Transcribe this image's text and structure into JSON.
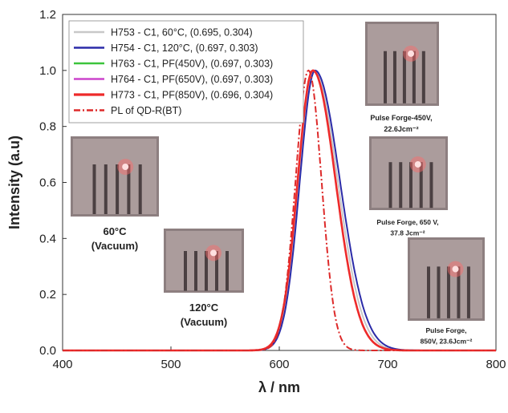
{
  "chart_data": {
    "type": "line",
    "xlabel": "λ / nm",
    "ylabel": "Intensity (a.u)",
    "xlim": [
      400,
      800
    ],
    "ylim": [
      0.0,
      1.2
    ],
    "xticks": [
      "400",
      "500",
      "600",
      "700",
      "800"
    ],
    "yticks": [
      "0.0",
      "0.2",
      "0.4",
      "0.6",
      "0.8",
      "1.0",
      "1.2"
    ],
    "grid": false,
    "legend_position": "top-left",
    "series": [
      {
        "name": "H753 - C1, 60°C, (0.695, 0.304)",
        "color": "#c8c8c8",
        "style": "solid",
        "peak": 632,
        "width_left": 14,
        "width_right": 22,
        "height": 1.0
      },
      {
        "name": "H754 - C1, 120°C, (0.697, 0.303)",
        "color": "#2b2ba8",
        "style": "solid",
        "peak": 633,
        "width_left": 14,
        "width_right": 23,
        "height": 1.0
      },
      {
        "name": "H763 - C1, PF(450V), (0.697, 0.303)",
        "color": "#3cc43c",
        "style": "solid",
        "peak": 631,
        "width_left": 14,
        "width_right": 21,
        "height": 1.0
      },
      {
        "name": "H764 - C1, PF(650V), (0.697, 0.303)",
        "color": "#cc44cc",
        "style": "solid",
        "peak": 631,
        "width_left": 14,
        "width_right": 21,
        "height": 1.0
      },
      {
        "name": "H773 - C1, PF(850V), (0.696, 0.304)",
        "color": "#ee2a2a",
        "style": "solid",
        "peak": 631,
        "width_left": 14,
        "width_right": 21,
        "height": 1.0
      },
      {
        "name": "PL of QD-R(BT)",
        "color": "#dd2a2a",
        "style": "dashdot",
        "peak": 627,
        "width_left": 12,
        "width_right": 12,
        "height": 1.0
      }
    ],
    "annotations": [
      {
        "id": "photo-60",
        "lines": [
          "60°C",
          "(Vacuum)"
        ]
      },
      {
        "id": "photo-120",
        "lines": [
          "120°C",
          "(Vacuum)"
        ]
      },
      {
        "id": "photo-450",
        "lines": [
          "Pulse Forge-450V,",
          "22.6Jcm⁻²"
        ]
      },
      {
        "id": "photo-650",
        "lines": [
          "Pulse Forge, 650 V,",
          "37.8 Jcm⁻²"
        ]
      },
      {
        "id": "photo-850",
        "lines": [
          "Pulse Forge,",
          "850V, 23.6Jcm⁻²"
        ]
      }
    ]
  }
}
